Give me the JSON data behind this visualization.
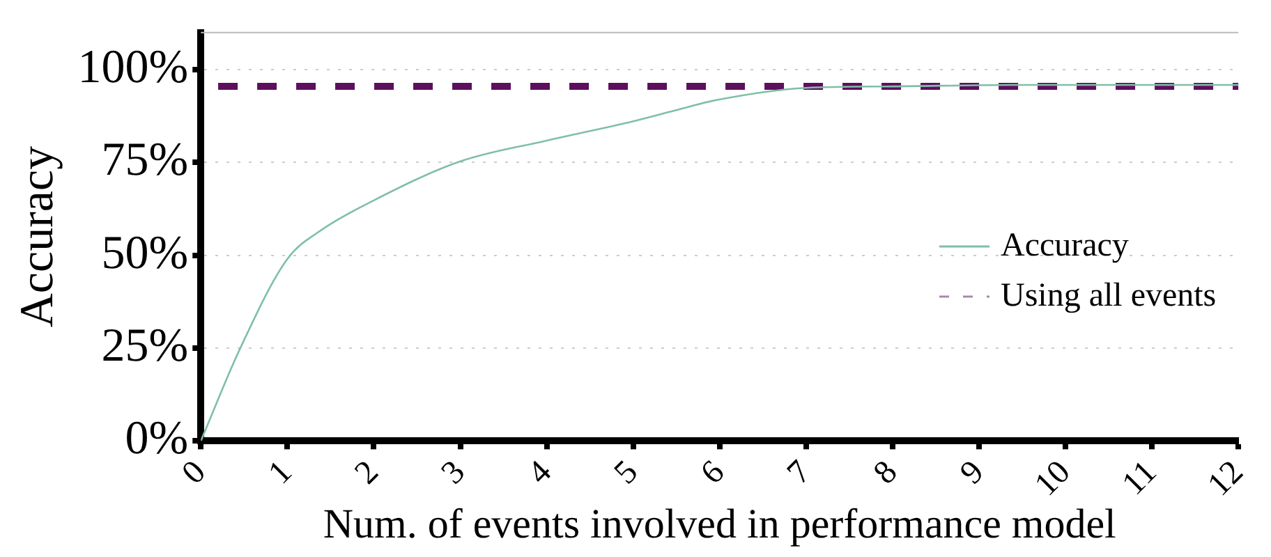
{
  "chart_data": {
    "type": "line",
    "xlabel": "Num. of events involved in performance model",
    "ylabel": "Accuracy",
    "series": [
      {
        "name": "Accuracy",
        "color": "#7fbfa8",
        "line_style": "solid",
        "x": [
          0,
          0.45,
          1,
          1.38,
          2,
          3,
          4,
          5,
          5.48,
          5.96,
          7,
          8,
          9.4,
          12
        ],
        "values": [
          0,
          24.7,
          49,
          56.6,
          64.8,
          75.3,
          80.9,
          86.1,
          89,
          91.8,
          95.1,
          95.5,
          95.9,
          95.9
        ]
      },
      {
        "name": "Using all events",
        "color": "#5c0f5c",
        "line_style": "dashed",
        "x": [
          0.2,
          12
        ],
        "values": [
          95.5,
          95.5
        ]
      }
    ],
    "xlim": [
      0,
      12
    ],
    "xticks": [
      0,
      1,
      2,
      3,
      4,
      5,
      6,
      7,
      8,
      9,
      10,
      11,
      12
    ],
    "ylim": [
      0,
      110
    ],
    "yticks": [
      {
        "value": 0,
        "label": "0%"
      },
      {
        "value": 25,
        "label": "25%"
      },
      {
        "value": 50,
        "label": "50%"
      },
      {
        "value": 75,
        "label": "75%"
      },
      {
        "value": 100,
        "label": "100%"
      }
    ],
    "grid": "y",
    "legend": "right",
    "marker": "none"
  }
}
